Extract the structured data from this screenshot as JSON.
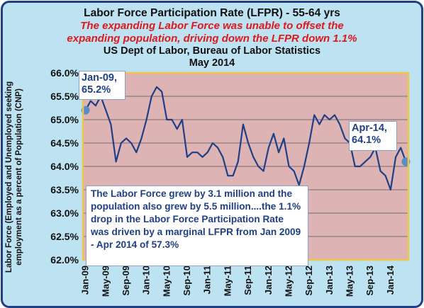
{
  "chart_data": {
    "type": "line",
    "title": "Labor Force Participation Rate (LFPR) - 55-64 yrs",
    "subtitle_lines": [
      "The expanding Labor Force  was unable to offset the",
      "expanding population, driving down the LFPR  down 1.1%"
    ],
    "source_lines": [
      "US Dept of Labor, Bureau of Labor Statistics",
      "May 2014"
    ],
    "ylabel_lines": [
      "Labor Force (Employed and Unemployed seeking",
      "employment as a percent of Population (CNP)"
    ],
    "ylim": [
      62.0,
      66.0
    ],
    "y_ticks": [
      "62.0%",
      "62.5%",
      "63.0%",
      "63.5%",
      "64.0%",
      "64.5%",
      "65.0%",
      "65.5%",
      "66.0%"
    ],
    "x_ticks": [
      "Jan-09",
      "May-09",
      "Sep-09",
      "Jan-10",
      "May-10",
      "Sep-10",
      "Jan-11",
      "May-11",
      "Sep-11",
      "Jan-12",
      "May-12",
      "Sep-12",
      "Jan-13",
      "May-13",
      "Sep-13",
      "Jan-14"
    ],
    "x_start": "Jan-09",
    "x_end": "Apr-14",
    "grid": true,
    "series": [
      {
        "values": [
          65.2,
          65.4,
          65.3,
          65.5,
          65.2,
          64.9,
          64.1,
          64.5,
          64.6,
          64.5,
          64.3,
          64.6,
          65.0,
          65.5,
          65.7,
          65.6,
          65.0,
          65.0,
          64.8,
          65.0,
          64.2,
          64.3,
          64.3,
          64.2,
          64.3,
          64.5,
          64.4,
          64.2,
          63.8,
          63.8,
          64.1,
          64.9,
          64.5,
          64.2,
          64.0,
          63.9,
          64.4,
          64.7,
          64.3,
          64.6,
          64.0,
          63.9,
          63.6,
          64.0,
          64.5,
          65.1,
          64.9,
          65.1,
          65.0,
          65.1,
          64.9,
          64.6,
          64.5,
          64.0,
          64.0,
          64.1,
          64.2,
          64.4,
          63.9,
          63.8,
          63.5,
          64.2,
          64.4,
          64.1
        ],
        "color": "#1f3f86"
      }
    ],
    "annotations": {
      "start_label": [
        "Jan-09,",
        "65.2%"
      ],
      "end_label": [
        "Apr-14,",
        "64.1%"
      ],
      "note": "The Labor Force grew by 3.1 million and the population also grew by 5.5 million....the  1.1% drop in the Labor Force Participation Rate was driven by a marginal LFPR from Jan 2009 - Apr 2014 of 57.3%"
    },
    "colors": {
      "plot_bg": "#ddb3b3",
      "frame_bg": "#bde2f2",
      "plot_border": "#f0c64a",
      "line": "#1f3f86",
      "marker": "#5b8cc8",
      "title_red": "#e3171b"
    }
  }
}
